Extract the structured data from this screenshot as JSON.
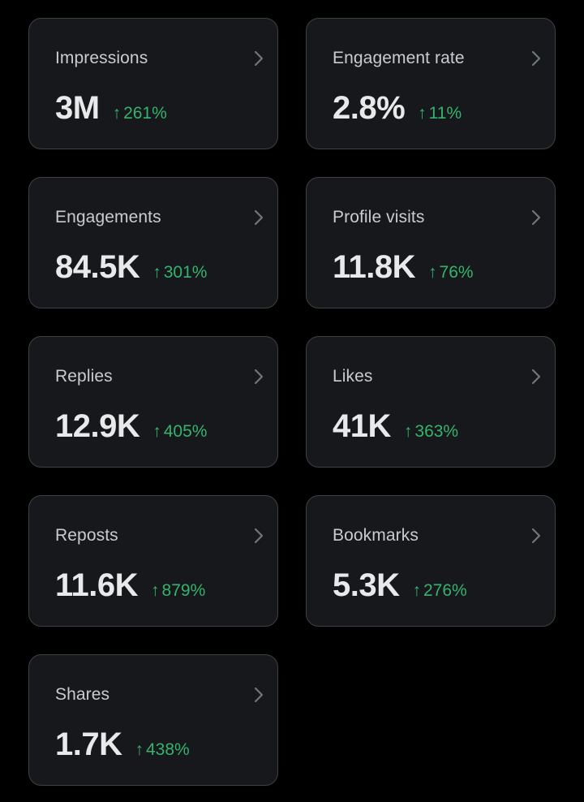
{
  "colors": {
    "background": "#000000",
    "card_background": "#16181c",
    "card_border": "#3e4144",
    "label": "#c8ccd0",
    "value": "#e7e9ea",
    "positive_change": "#35b36d",
    "chevron": "#71767b"
  },
  "icons": {
    "chevron": "chevron-right-icon",
    "trend": "arrow-up-icon",
    "arrow_glyph": "↑"
  },
  "metrics": [
    {
      "label": "Impressions",
      "value": "3M",
      "change": "261%"
    },
    {
      "label": "Engagement rate",
      "value": "2.8%",
      "change": "11%"
    },
    {
      "label": "Engagements",
      "value": "84.5K",
      "change": "301%"
    },
    {
      "label": "Profile visits",
      "value": "11.8K",
      "change": "76%"
    },
    {
      "label": "Replies",
      "value": "12.9K",
      "change": "405%"
    },
    {
      "label": "Likes",
      "value": "41K",
      "change": "363%"
    },
    {
      "label": "Reposts",
      "value": "11.6K",
      "change": "879%"
    },
    {
      "label": "Bookmarks",
      "value": "5.3K",
      "change": "276%"
    },
    {
      "label": "Shares",
      "value": "1.7K",
      "change": "438%"
    }
  ]
}
